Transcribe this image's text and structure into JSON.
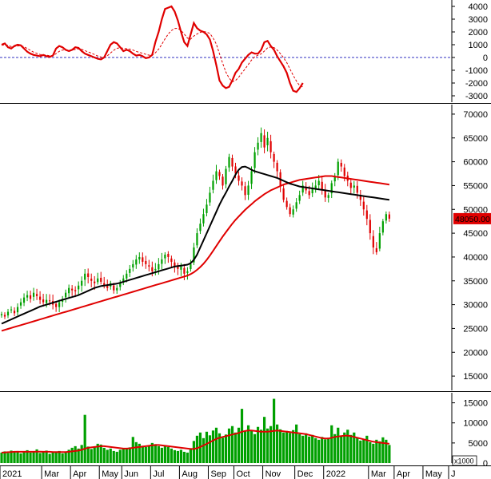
{
  "chart_data": [
    {
      "type": "line",
      "panel": "macd",
      "ylim": [
        -3500,
        4500
      ],
      "yticks": [
        -3000,
        -2000,
        -1000,
        0,
        1000,
        2000,
        3000,
        4000
      ],
      "colors": {
        "macd": "#e00000",
        "signal": "#e00000",
        "zero": "#3030c0"
      },
      "series": [
        {
          "values": [
            1000,
            1100,
            800,
            700,
            900,
            1000,
            950,
            700,
            450,
            300,
            200,
            150,
            100,
            200,
            100,
            50,
            150,
            700,
            900,
            800,
            600,
            500,
            600,
            800,
            750,
            500,
            300,
            200,
            100,
            0,
            -100,
            -150,
            0,
            500,
            1000,
            1200,
            1100,
            800,
            500,
            600,
            500,
            300,
            150,
            200,
            100,
            -50,
            0,
            200,
            1200,
            2000,
            3000,
            3800,
            3900,
            4000,
            3600,
            2900,
            2000,
            1200,
            900,
            1800,
            2700,
            2300,
            2100,
            2000,
            1800,
            1400,
            500,
            -600,
            -1800,
            -2200,
            -2400,
            -2300,
            -1800,
            -1200,
            -900,
            -400,
            -100,
            200,
            400,
            300,
            300,
            600,
            1200,
            1300,
            900,
            600,
            100,
            -300,
            -700,
            -1200,
            -2000,
            -2600,
            -2700,
            -2400,
            -2000
          ]
        },
        {
          "style": "dashed",
          "values": [
            950,
            1000,
            950,
            850,
            850,
            900,
            920,
            850,
            700,
            550,
            420,
            320,
            240,
            210,
            180,
            140,
            130,
            300,
            480,
            580,
            590,
            570,
            570,
            630,
            670,
            630,
            540,
            440,
            340,
            230,
            120,
            30,
            10,
            130,
            350,
            560,
            720,
            770,
            720,
            690,
            650,
            580,
            480,
            400,
            330,
            250,
            180,
            170,
            370,
            650,
            1030,
            1460,
            1840,
            2110,
            2270,
            2290,
            2110,
            1840,
            1520,
            1430,
            1680,
            1840,
            1960,
            2030,
            1990,
            1880,
            1520,
            1050,
            280,
            -460,
            -1150,
            -1620,
            -1900,
            -1800,
            -1550,
            -1200,
            -900,
            -550,
            -200,
            50,
            180,
            280,
            500,
            750,
            820,
            780,
            580,
            300,
            -20,
            -400,
            -900,
            -1400,
            -1850,
            -2200,
            -2300
          ]
        }
      ]
    },
    {
      "type": "candlestick",
      "panel": "price",
      "ylim": [
        12000,
        72000
      ],
      "yticks": [
        15000,
        20000,
        25000,
        30000,
        35000,
        40000,
        45000,
        50000,
        55000,
        60000,
        65000,
        70000
      ],
      "last_price_label": "48050.00",
      "colors": {
        "up": "#00a000",
        "down": "#e00000",
        "ma_fast": "#000000",
        "ma_slow": "#e00000",
        "label_bg": "#e00000"
      },
      "close": [
        28000,
        27500,
        28500,
        29000,
        28200,
        29500,
        30500,
        31500,
        32000,
        31200,
        32500,
        31800,
        31000,
        30500,
        31000,
        30800,
        30000,
        29500,
        30500,
        31200,
        32500,
        33500,
        33000,
        32800,
        34000,
        35000,
        36500,
        35800,
        35000,
        34500,
        35500,
        34800,
        34000,
        33500,
        34500,
        33000,
        33500,
        34500,
        35500,
        36500,
        37500,
        38500,
        39500,
        40000,
        39000,
        38500,
        38000,
        37000,
        37500,
        38500,
        39500,
        40500,
        40000,
        39000,
        38000,
        37500,
        38000,
        36500,
        37000,
        38500,
        42000,
        45000,
        47000,
        49000,
        51000,
        53500,
        56000,
        58000,
        57000,
        55000,
        58500,
        61000,
        59000,
        57500,
        56000,
        55000,
        53000,
        55000,
        58000,
        62000,
        64000,
        66000,
        63000,
        65000,
        62000,
        60000,
        58000,
        55000,
        52000,
        50500,
        49000,
        50000,
        51500,
        53000,
        55000,
        54000,
        53000,
        54500,
        55000,
        56000,
        54000,
        52500,
        53000,
        55500,
        57000,
        60000,
        59000,
        57000,
        56000,
        54500,
        55000,
        53500,
        52000,
        50000,
        48000,
        45000,
        42000,
        41000,
        45000,
        47500,
        49000,
        48050
      ],
      "series": [
        {
          "name": "",
          "values": [
            26000,
            26300,
            26600,
            26900,
            27200,
            27500,
            27800,
            28100,
            28400,
            28700,
            29000,
            29300,
            29600,
            29800,
            30000,
            30200,
            30400,
            30600,
            30800,
            31000,
            31200,
            31400,
            31600,
            31800,
            32000,
            32300,
            32600,
            32900,
            33200,
            33500,
            33700,
            33900,
            34000,
            34100,
            34200,
            34300,
            34400,
            34600,
            34800,
            35000,
            35200,
            35400,
            35600,
            35800,
            36000,
            36200,
            36400,
            36600,
            36800,
            37000,
            37200,
            37400,
            37600,
            37800,
            38000,
            38100,
            38200,
            38300,
            38400,
            38700,
            39400,
            40500,
            42000,
            43500,
            45000,
            46500,
            48000,
            49500,
            51000,
            52300,
            53500,
            54800,
            56000,
            57300,
            58300,
            58900,
            59000,
            58700,
            58300,
            58000,
            57800,
            57600,
            57400,
            57200,
            57000,
            56800,
            56600,
            56300,
            56000,
            55700,
            55400,
            55200,
            55000,
            54800,
            54700,
            54600,
            54500,
            54400,
            54300,
            54200,
            54100,
            54000,
            53900,
            53800,
            53700,
            53600,
            53500,
            53400,
            53300,
            53200,
            53100,
            53000,
            52900,
            52800,
            52700,
            52600,
            52500,
            52400,
            52300,
            52200,
            52100,
            52000
          ]
        },
        {
          "name": "",
          "values": [
            24500,
            24700,
            24900,
            25100,
            25300,
            25500,
            25700,
            25900,
            26100,
            26300,
            26500,
            26700,
            26900,
            27100,
            27300,
            27500,
            27700,
            27900,
            28100,
            28300,
            28500,
            28700,
            28900,
            29100,
            29300,
            29500,
            29700,
            29900,
            30100,
            30300,
            30500,
            30700,
            30900,
            31100,
            31300,
            31500,
            31700,
            31900,
            32100,
            32300,
            32500,
            32700,
            32900,
            33100,
            33300,
            33500,
            33700,
            33900,
            34100,
            34300,
            34500,
            34700,
            34900,
            35100,
            35300,
            35500,
            35700,
            35900,
            36100,
            36400,
            36800,
            37300,
            37900,
            38600,
            39400,
            40300,
            41300,
            42300,
            43300,
            44300,
            45200,
            46100,
            47000,
            47800,
            48500,
            49200,
            49900,
            50500,
            51100,
            51700,
            52200,
            52700,
            53200,
            53600,
            54000,
            54300,
            54600,
            54900,
            55200,
            55400,
            55600,
            55800,
            56000,
            56200,
            56300,
            56400,
            56500,
            56600,
            56700,
            56800,
            56900,
            57000,
            57000,
            57000,
            56900,
            56800,
            56700,
            56600,
            56500,
            56400,
            56300,
            56200,
            56100,
            56000,
            55900,
            55800,
            55700,
            55600,
            55500,
            55400,
            55300,
            55200
          ]
        }
      ]
    },
    {
      "type": "bar",
      "panel": "volume",
      "ylim": [
        0,
        17500
      ],
      "yticks": [
        0,
        5000,
        10000,
        15000
      ],
      "unit_label": "x1000",
      "colors": {
        "bars": "#00a000",
        "ma": "#e00000"
      },
      "values": [
        2600,
        2900,
        2500,
        3100,
        2700,
        3000,
        2400,
        2800,
        3200,
        2600,
        2900,
        3400,
        2500,
        2700,
        3100,
        2300,
        2600,
        2800,
        3000,
        2400,
        2700,
        3300,
        3800,
        4200,
        3600,
        4500,
        12000,
        4100,
        3500,
        3900,
        4800,
        4600,
        3800,
        3300,
        3600,
        3000,
        2800,
        3300,
        3700,
        3500,
        3900,
        6500,
        5200,
        4800,
        4300,
        4000,
        4400,
        5000,
        4700,
        4200,
        3800,
        4300,
        4000,
        3600,
        3200,
        3000,
        3300,
        2800,
        2600,
        3700,
        5500,
        6800,
        7600,
        6200,
        7800,
        6900,
        8100,
        8800,
        7400,
        6300,
        7100,
        8600,
        9200,
        7600,
        8800,
        13500,
        8000,
        9400,
        8200,
        7200,
        9000,
        8300,
        11500,
        8600,
        9200,
        16000,
        9600,
        8400,
        7600,
        8000,
        7500,
        8200,
        9600,
        7200,
        6800,
        7400,
        6600,
        7000,
        6200,
        5800,
        6500,
        5900,
        6300,
        9400,
        7200,
        8800,
        6800,
        7600,
        8300,
        7000,
        7600,
        6400,
        5600,
        6000,
        6800,
        5200,
        4800,
        5800,
        5400,
        6400,
        5800,
        4500
      ],
      "ma_values": [
        2600,
        2650,
        2700,
        2750,
        2800,
        2800,
        2800,
        2800,
        2800,
        2800,
        2800,
        2850,
        2850,
        2800,
        2800,
        2800,
        2750,
        2750,
        2750,
        2750,
        2750,
        2800,
        2900,
        3000,
        3100,
        3300,
        3600,
        3800,
        3900,
        4000,
        4100,
        4200,
        4200,
        4100,
        4000,
        3900,
        3800,
        3700,
        3600,
        3600,
        3650,
        3800,
        3900,
        4000,
        4100,
        4200,
        4300,
        4400,
        4500,
        4500,
        4400,
        4300,
        4200,
        4100,
        4000,
        3900,
        3800,
        3700,
        3600,
        3500,
        3500,
        3700,
        4000,
        4400,
        4800,
        5200,
        5600,
        6000,
        6300,
        6500,
        6700,
        6900,
        7100,
        7300,
        7500,
        7800,
        8000,
        8100,
        8100,
        8000,
        7900,
        7800,
        7800,
        7800,
        7900,
        8000,
        8100,
        8000,
        7900,
        7800,
        7700,
        7600,
        7500,
        7400,
        7300,
        7200,
        7000,
        6800,
        6600,
        6400,
        6200,
        6100,
        6100,
        6300,
        6500,
        6600,
        6700,
        6800,
        6800,
        6700,
        6500,
        6300,
        6100,
        5900,
        5700,
        5500,
        5300,
        5200,
        5100,
        5000,
        4900,
        4800
      ]
    }
  ],
  "x_axis": {
    "ticks": [
      {
        "label": "2021",
        "index": 0
      },
      {
        "label": "Mar",
        "index": 13
      },
      {
        "label": "Apr",
        "index": 22
      },
      {
        "label": "May",
        "index": 31
      },
      {
        "label": "Jun",
        "index": 38
      },
      {
        "label": "Jul",
        "index": 47
      },
      {
        "label": "Aug",
        "index": 56
      },
      {
        "label": "Sep",
        "index": 65
      },
      {
        "label": "Oct",
        "index": 73
      },
      {
        "label": "Nov",
        "index": 82
      },
      {
        "label": "Dec",
        "index": 92
      },
      {
        "label": "2022",
        "index": 101
      },
      {
        "label": "Mar",
        "index": 115
      },
      {
        "label": "Apr",
        "index": 123
      },
      {
        "label": "May",
        "index": 132
      },
      {
        "label": "J",
        "index": 140
      }
    ]
  }
}
